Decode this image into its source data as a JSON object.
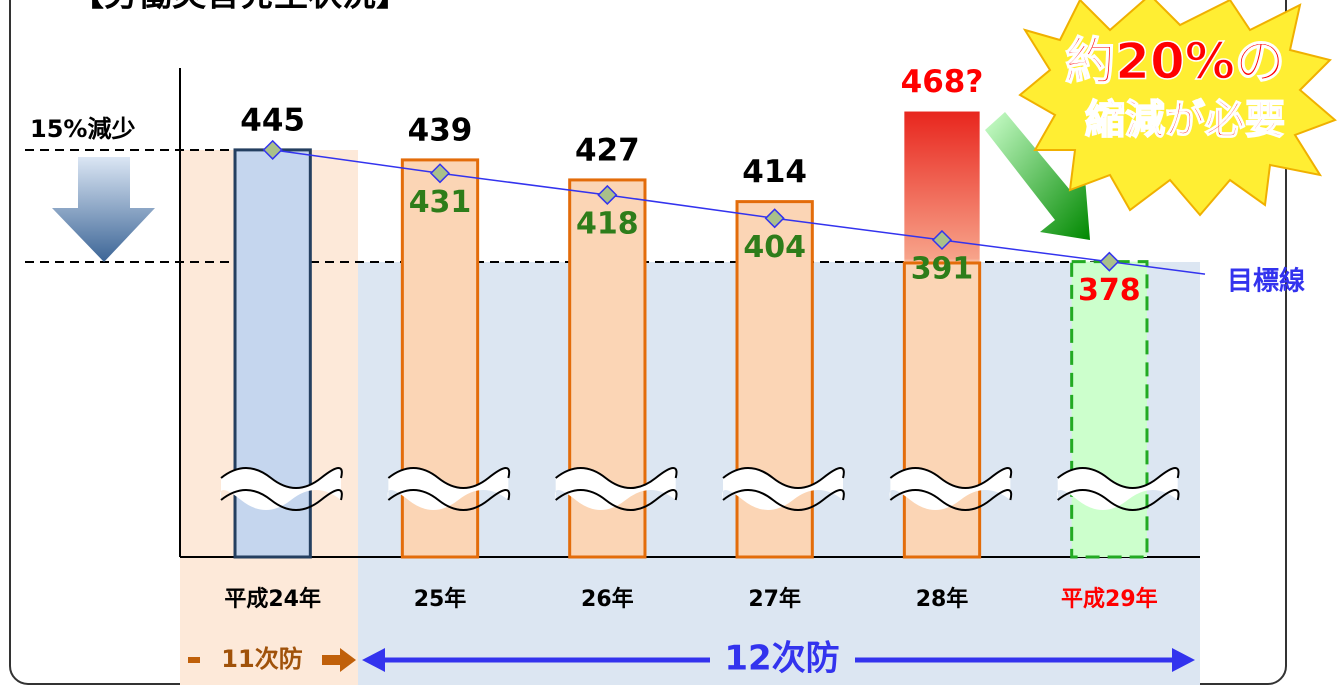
{
  "chart_data": {
    "type": "bar",
    "title": "【労働災害発生状況】",
    "categories": [
      "平成24年",
      "25年",
      "26年",
      "27年",
      "28年",
      "平成29年"
    ],
    "category_colors": [
      "#000000",
      "#000000",
      "#000000",
      "#000000",
      "#000000",
      "#ff0000"
    ],
    "ylim": [
      201,
      480
    ],
    "series": [
      {
        "values": [
          445,
          439,
          427,
          414,
          468,
          null
        ],
        "value_labels": [
          "445",
          "439",
          "427",
          "414",
          "468?",
          null
        ],
        "colors": [
          "#c5d6ee",
          "#fbd5b5",
          "#fbd5b5",
          "#fbd5b5",
          "#fbd5b5",
          null
        ],
        "edge_colors": [
          "#243f60",
          "#e36c0a",
          "#e36c0a",
          "#e36c0a",
          "#e36c0a",
          null
        ],
        "label_colors": [
          "#000000",
          "#000000",
          "#000000",
          "#000000",
          "#ff0000",
          null
        ]
      },
      {
        "name": "目標線",
        "values": [
          445,
          431,
          418,
          404,
          391,
          378
        ],
        "color": "#3333ee",
        "label_colors": [
          null,
          "#2e7d1a",
          "#2e7d1a",
          "#2e7d1a",
          "#2e7d1a",
          "#ff0000"
        ],
        "target_fill": "#ccffcc",
        "target_edge": "#22aa22"
      }
    ],
    "annotations": {
      "reduction": "15%減少",
      "need_1": "約20%の",
      "need_2": "縮減が必要",
      "plan_11": "11次防",
      "plan_12": "12次防"
    }
  }
}
